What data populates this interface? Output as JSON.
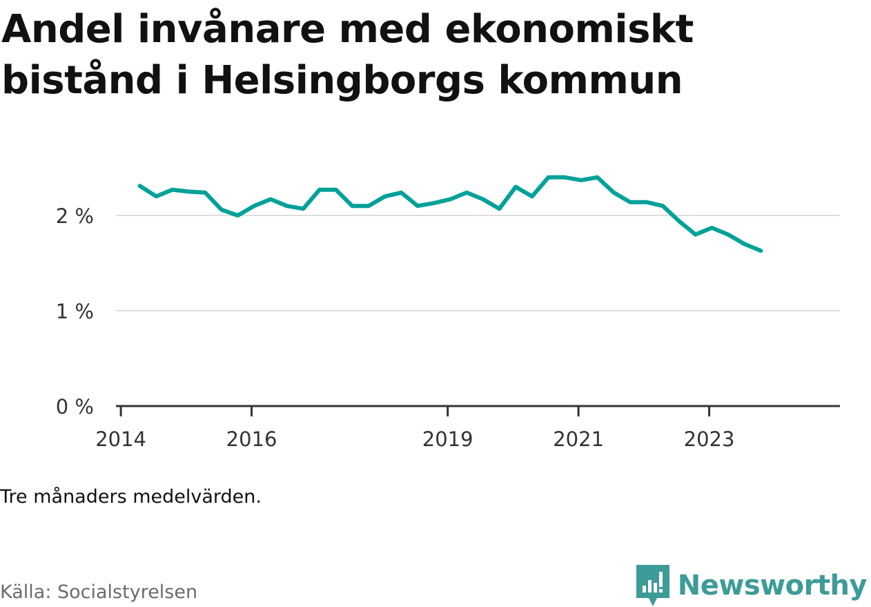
{
  "title": "Andel invånare med ekonomiskt bistånd i Helsingborgs kommun",
  "note": "Tre månaders medelvärden.",
  "source": "Källa: Socialstyrelsen",
  "brand": {
    "name": "Newsworthy",
    "icon": "newsworthy-logo-icon",
    "color": "#3d9b98"
  },
  "chart_data": {
    "type": "line",
    "title": "Andel invånare med ekonomiskt bistånd i Helsingborgs kommun",
    "xlabel": "",
    "ylabel": "",
    "ylim": [
      0,
      3.0
    ],
    "xlim": [
      2013.925,
      2025.0
    ],
    "y_ticks": [
      {
        "value": 0,
        "label": "0 %"
      },
      {
        "value": 1,
        "label": "1 %"
      },
      {
        "value": 2,
        "label": "2 %"
      }
    ],
    "x_ticks": [
      {
        "value": 2014,
        "label": "2014"
      },
      {
        "value": 2016,
        "label": "2016"
      },
      {
        "value": 2019,
        "label": "2019"
      },
      {
        "value": 2021,
        "label": "2021"
      },
      {
        "value": 2023,
        "label": "2023"
      }
    ],
    "grid": true,
    "legend": "none",
    "series": [
      {
        "color": "#00a199",
        "x": [
          2014.29,
          2014.54,
          2014.79,
          2015.04,
          2015.29,
          2015.54,
          2015.79,
          2016.04,
          2016.29,
          2016.54,
          2016.79,
          2017.04,
          2017.29,
          2017.54,
          2017.79,
          2018.04,
          2018.29,
          2018.54,
          2018.79,
          2019.04,
          2019.29,
          2019.54,
          2019.79,
          2020.04,
          2020.29,
          2020.54,
          2020.79,
          2021.04,
          2021.29,
          2021.54,
          2021.79,
          2022.04,
          2022.29,
          2022.54,
          2022.79,
          2023.04,
          2023.29,
          2023.54,
          2023.79
        ],
        "values": [
          2.31,
          2.2,
          2.27,
          2.25,
          2.24,
          2.06,
          2.0,
          2.1,
          2.17,
          2.1,
          2.07,
          2.27,
          2.27,
          2.1,
          2.1,
          2.2,
          2.24,
          2.1,
          2.13,
          2.17,
          2.24,
          2.17,
          2.07,
          2.3,
          2.2,
          2.4,
          2.4,
          2.37,
          2.4,
          2.24,
          2.14,
          2.14,
          2.1,
          1.94,
          1.8,
          1.87,
          1.8,
          1.7,
          1.63
        ]
      }
    ]
  }
}
